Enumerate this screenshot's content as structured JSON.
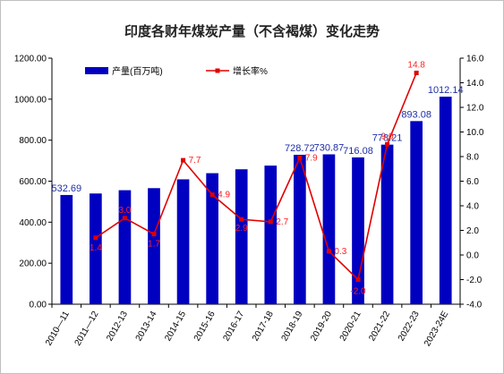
{
  "chart_data": {
    "type": "bar+line",
    "title": "印度各财年煤炭产量（不含褐煤）变化走势",
    "categories": [
      "2010—11",
      "2011—12",
      "2012-13",
      "2013-14",
      "2014-15",
      "2015-16",
      "2016-17",
      "2017-18",
      "2018-19",
      "2019-20",
      "2020-21",
      "2021-22",
      "2022-23",
      "2023-24E"
    ],
    "series": [
      {
        "name": "产量(百万吨)",
        "type": "bar",
        "axis": "left",
        "color": "#0000c0",
        "values": [
          532.69,
          540,
          556,
          566,
          609,
          639,
          658,
          676,
          728.72,
          730.87,
          716.08,
          778.21,
          893.08,
          1012.14
        ],
        "labels": [
          "532.69",
          "",
          "",
          "",
          "",
          "",
          "",
          "",
          "728.72",
          "730.87",
          "716.08",
          "778.21",
          "893.08",
          "1012.14"
        ]
      },
      {
        "name": "增长率%",
        "type": "line",
        "axis": "right",
        "color": "#e00000",
        "values": [
          null,
          1.4,
          3.0,
          1.7,
          7.7,
          4.9,
          2.9,
          2.7,
          7.9,
          0.3,
          -2.0,
          9.0,
          14.8,
          null
        ],
        "labels": [
          "",
          "1.4",
          "3.0",
          "1.7",
          "7.7",
          "4.9",
          "2.9",
          "2.7",
          "7.9",
          "0.3",
          "-2.0",
          "9.0",
          "14.8",
          ""
        ]
      }
    ],
    "y_left": {
      "min": 0,
      "max": 1200,
      "ticks": [
        "0.00",
        "200.00",
        "400.00",
        "600.00",
        "800.00",
        "1000.00",
        "1200.00"
      ]
    },
    "y_right": {
      "min": -4,
      "max": 16,
      "ticks": [
        "-4.0",
        "-2.0",
        "0.0",
        "2.0",
        "4.0",
        "6.0",
        "8.0",
        "10.0",
        "12.0",
        "14.0",
        "16.0"
      ]
    },
    "legend": "top-left",
    "grid": false
  }
}
